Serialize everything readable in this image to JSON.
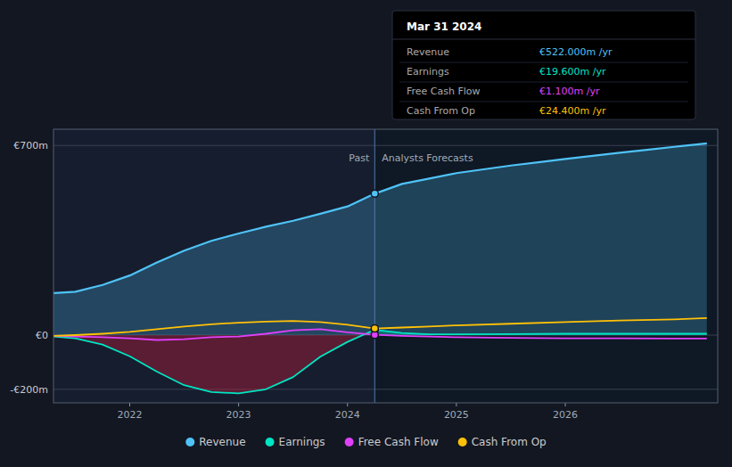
{
  "chart_data": {
    "type": "line",
    "xlim": [
      2021.3,
      2027.4
    ],
    "xticks": [
      2022,
      2023,
      2024,
      2025,
      2026
    ],
    "ylim": [
      -250,
      760
    ],
    "yticks": [
      {
        "value": 700,
        "label": "€700m"
      },
      {
        "value": 0,
        "label": "€0"
      },
      {
        "value": -200,
        "label": "-€200m"
      }
    ],
    "grid": true,
    "legend": "bottom",
    "series": [
      {
        "name": "Revenue",
        "type": "area",
        "color": "#4fc3f7",
        "x": [
          2021.3,
          2021.5,
          2021.75,
          2022.0,
          2022.25,
          2022.5,
          2022.75,
          2023.0,
          2023.25,
          2023.5,
          2023.75,
          2024.0,
          2024.25,
          2024.5,
          2024.75,
          2025.0,
          2025.25,
          2025.5,
          2025.75,
          2026.0,
          2026.25,
          2026.5,
          2026.75,
          2027.0,
          2027.3
        ],
        "values": [
          155,
          160,
          185,
          220,
          268,
          312,
          348,
          375,
          400,
          422,
          448,
          475,
          522,
          558,
          578,
          598,
          612,
          626,
          638,
          650,
          662,
          673,
          684,
          695,
          708
        ]
      },
      {
        "name": "Earnings",
        "type": "area",
        "color": "#00e5c3",
        "x": [
          2021.3,
          2021.5,
          2021.75,
          2022.0,
          2022.25,
          2022.5,
          2022.75,
          2023.0,
          2023.25,
          2023.5,
          2023.75,
          2024.0,
          2024.25,
          2024.5,
          2024.75,
          2025.0,
          2025.5,
          2026.0,
          2026.5,
          2027.0,
          2027.3
        ],
        "values": [
          -5,
          -12,
          -35,
          -78,
          -135,
          -185,
          -210,
          -215,
          -200,
          -155,
          -80,
          -25,
          19.6,
          8,
          3,
          3,
          4,
          5,
          5,
          5,
          5
        ]
      },
      {
        "name": "Free Cash Flow",
        "type": "line",
        "color": "#e040fb",
        "x": [
          2021.3,
          2021.5,
          2021.75,
          2022.0,
          2022.25,
          2022.5,
          2022.75,
          2023.0,
          2023.25,
          2023.5,
          2023.75,
          2024.0,
          2024.25,
          2024.5,
          2024.75,
          2025.0,
          2025.5,
          2026.0,
          2026.5,
          2027.0,
          2027.3
        ],
        "values": [
          -3,
          -5,
          -8,
          -12,
          -18,
          -15,
          -8,
          -5,
          5,
          18,
          22,
          10,
          1.1,
          -3,
          -5,
          -8,
          -10,
          -12,
          -12,
          -13,
          -13
        ]
      },
      {
        "name": "Cash From Op",
        "type": "line",
        "color": "#ffc107",
        "x": [
          2021.3,
          2021.5,
          2021.75,
          2022.0,
          2022.25,
          2022.5,
          2022.75,
          2023.0,
          2023.25,
          2023.5,
          2023.75,
          2024.0,
          2024.25,
          2024.5,
          2024.75,
          2025.0,
          2025.5,
          2026.0,
          2026.5,
          2027.0,
          2027.3
        ],
        "values": [
          -3,
          0,
          5,
          12,
          22,
          32,
          40,
          46,
          50,
          52,
          48,
          38,
          24.4,
          28,
          32,
          36,
          42,
          48,
          54,
          58,
          63
        ]
      }
    ],
    "annotations": [
      {
        "type": "divider",
        "x": 2024.25,
        "y": 680,
        "left_text": "Past",
        "right_text": "Analysts Forecasts"
      }
    ],
    "tooltip": {
      "title": "Mar 31 2024",
      "x": 2024.25,
      "rows": [
        {
          "label": "Revenue",
          "value": 522,
          "value_label": "€522.000m /yr",
          "color": "#4fc3f7"
        },
        {
          "label": "Earnings",
          "value": 19.6,
          "value_label": "€19.600m /yr",
          "color": "#00e5c3"
        },
        {
          "label": "Free Cash Flow",
          "value": 1.1,
          "value_label": "€1.100m /yr",
          "color": "#e040fb"
        },
        {
          "label": "Cash From Op",
          "value": 24.4,
          "value_label": "€24.400m /yr",
          "color": "#ffc107"
        }
      ]
    }
  }
}
